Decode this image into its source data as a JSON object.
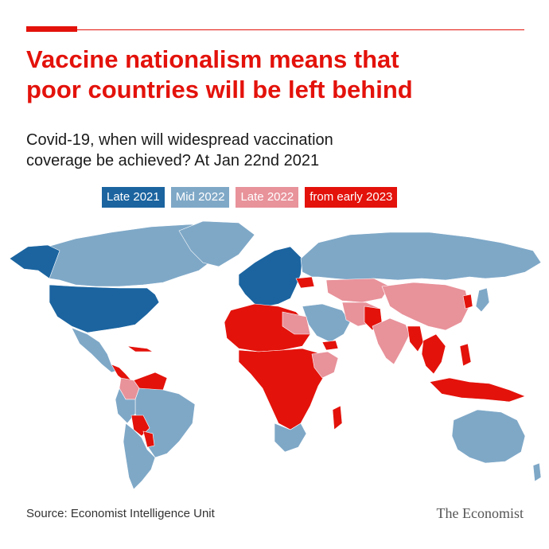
{
  "headline": {
    "line1": "Vaccine nationalism means that",
    "line2": "poor countries will be left behind"
  },
  "subtitle": {
    "line1": "Covid-19, when will widespread vaccination",
    "line2_bold": "coverage be achieved?",
    "line2_date": " At Jan 22nd 2021"
  },
  "legend": [
    {
      "label": "Late 2021",
      "color": "#1b64a0"
    },
    {
      "label": "Mid 2022",
      "color": "#7fa8c7"
    },
    {
      "label": "Late 2022",
      "color": "#e8929a"
    },
    {
      "label": "from early 2023",
      "color": "#e3120b"
    }
  ],
  "map": {
    "projection": "world",
    "category_colors": {
      "late_2021": "#1b64a0",
      "mid_2022": "#7fa8c7",
      "late_2022": "#e8929a",
      "early_2023": "#e3120b"
    }
  },
  "footer": {
    "source": "Source: Economist Intelligence Unit",
    "brand": "The Economist"
  }
}
